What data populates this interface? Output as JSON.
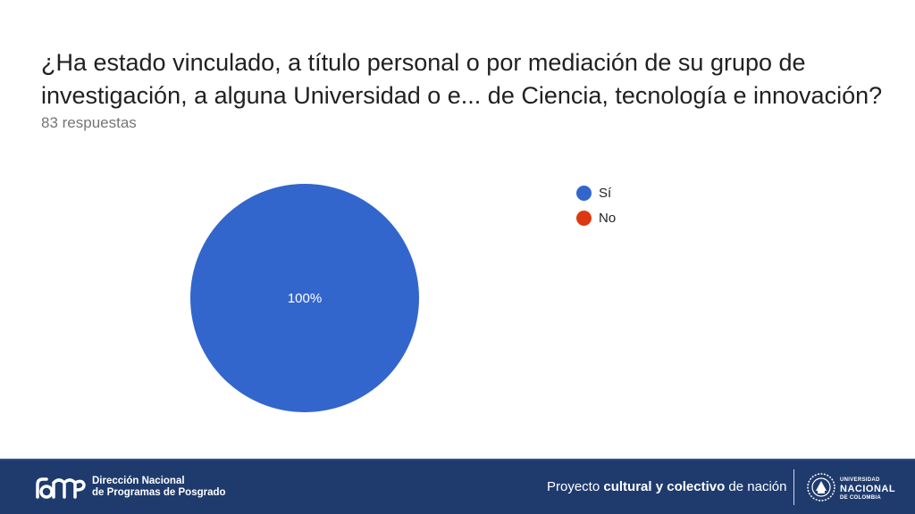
{
  "title_line1": "¿Ha estado vinculado, a título personal o por mediación de su grupo de",
  "title_line2": "investigación, a alguna Universidad o e... de Ciencia, tecnología e innovación?",
  "subtitle": "83 respuestas",
  "chart_data": {
    "type": "pie",
    "title": "¿Ha estado vinculado, a título personal o por mediación de su grupo de investigación, a alguna Universidad o e... de Ciencia, tecnología e innovación?",
    "total_responses": 83,
    "categories": [
      "Sí",
      "No"
    ],
    "values": [
      100,
      0
    ],
    "unit": "%",
    "colors": [
      "#3366cc",
      "#dc3912"
    ],
    "slice_labels": [
      "100%",
      ""
    ],
    "legend_position": "right"
  },
  "footer": {
    "org_line1": "Dirección Nacional",
    "org_line2": "de Programas de Posgrado",
    "slogan_part1": "Proyecto ",
    "slogan_bold": "cultural y colectivo",
    "slogan_part2": " de nación",
    "univ_line1": "UNIVERSIDAD",
    "univ_line2": "NACIONAL",
    "univ_line3": "DE COLOMBIA",
    "bg_color": "#1f3b6e"
  }
}
